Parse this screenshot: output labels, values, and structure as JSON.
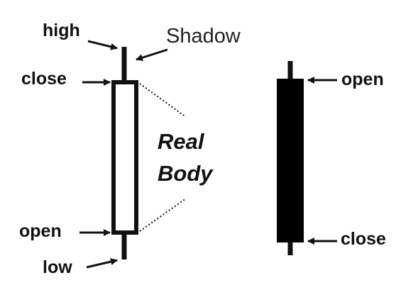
{
  "labels": {
    "high": "high",
    "shadow": "Shadow",
    "bullish_close": "close",
    "real": "Real",
    "body": "Body",
    "bullish_open": "open",
    "low": "low",
    "bearish_open": "open",
    "bearish_close": "close"
  },
  "colors": {
    "ink": "#111111",
    "bullish_fill": "#ffffff",
    "bearish_fill": "#000000"
  }
}
